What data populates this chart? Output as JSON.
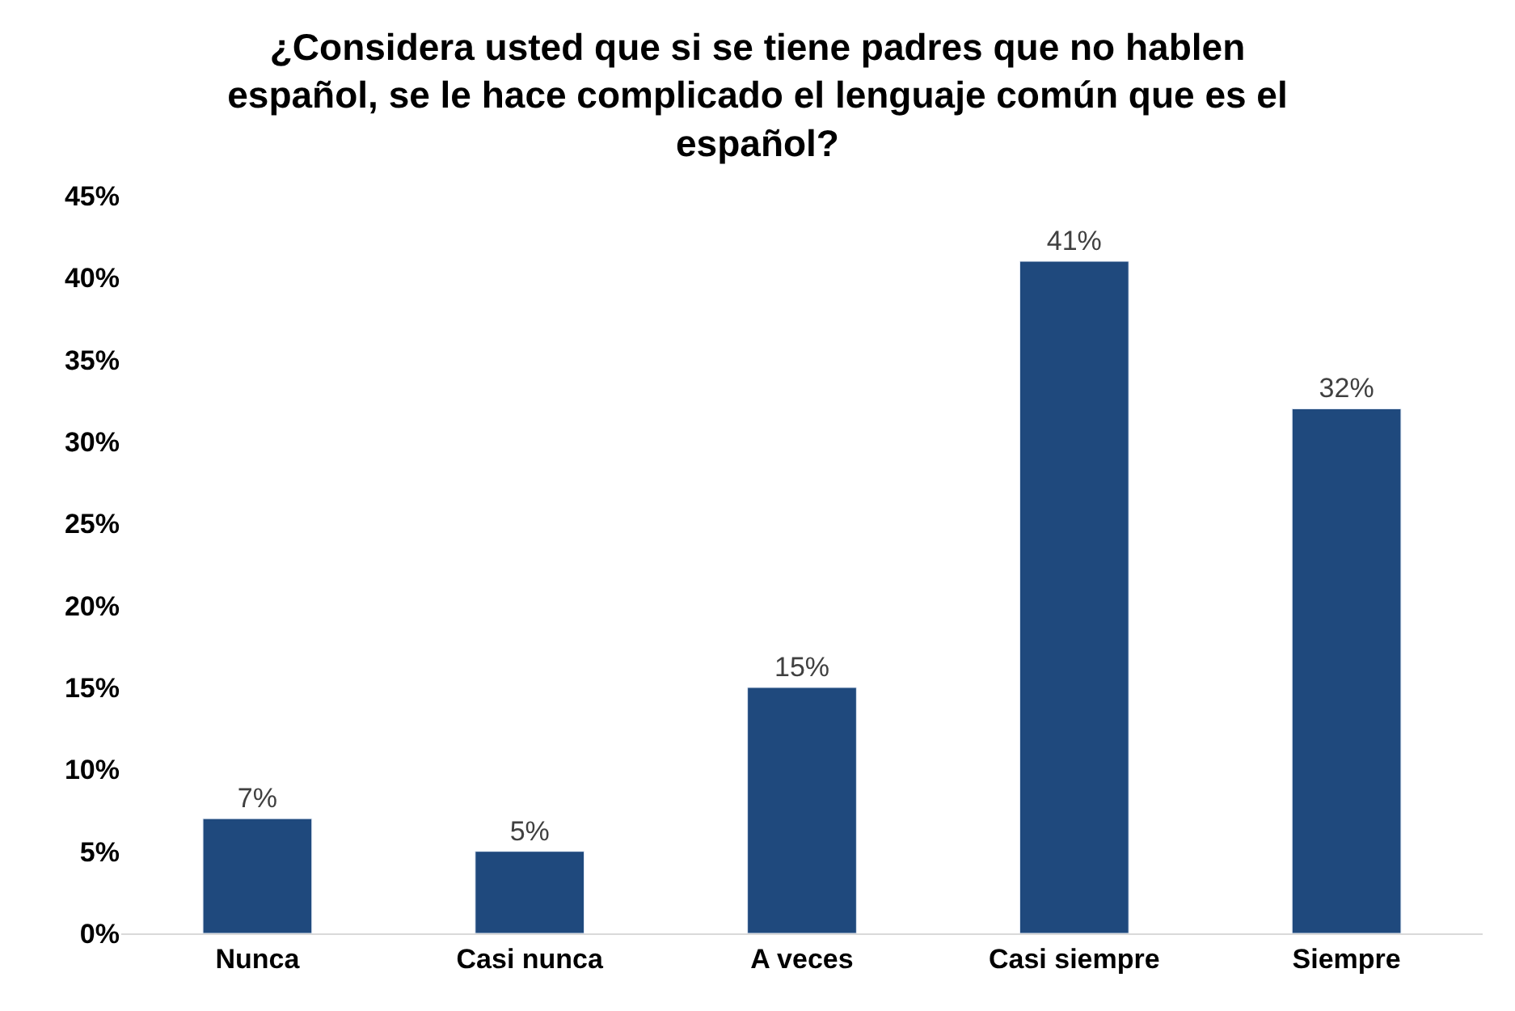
{
  "chart_data": {
    "type": "bar",
    "title": "¿Considera usted que si se tiene padres que no hablen\nespañol, se le hace complicado el lenguaje común que es el\nespañol?",
    "categories": [
      "Nunca",
      "Casi nunca",
      "A veces",
      "Casi siempre",
      "Siempre"
    ],
    "values": [
      7,
      5,
      15,
      41,
      32
    ],
    "value_labels": [
      "7%",
      "5%",
      "15%",
      "41%",
      "32%"
    ],
    "color": "#1f497d",
    "ylim": [
      0,
      45
    ],
    "yticks": [
      {
        "value": 0,
        "label": "0%"
      },
      {
        "value": 5,
        "label": "5%"
      },
      {
        "value": 10,
        "label": "10%"
      },
      {
        "value": 15,
        "label": "15%"
      },
      {
        "value": 20,
        "label": "20%"
      },
      {
        "value": 25,
        "label": "25%"
      },
      {
        "value": 30,
        "label": "30%"
      },
      {
        "value": 35,
        "label": "35%"
      },
      {
        "value": 40,
        "label": "40%"
      },
      {
        "value": 45,
        "label": "45%"
      }
    ]
  }
}
